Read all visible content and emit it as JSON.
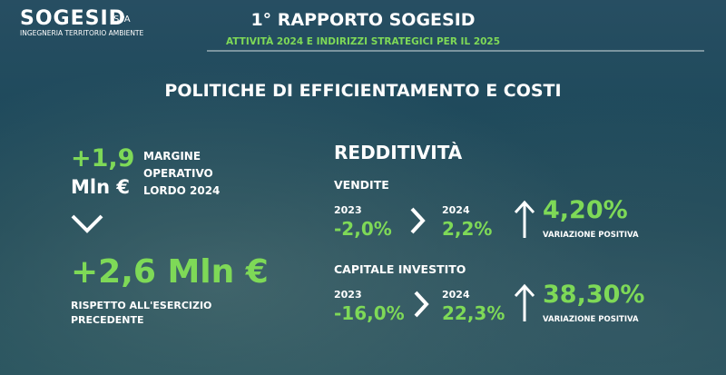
{
  "header": {
    "logo": "SOGESID",
    "logo_suffix": "SPA",
    "tagline": "INGEGNERIA TERRITORIO AMBIENTE",
    "title": "1° RAPPORTO SOGESID",
    "subtitle": "ATTIVITÀ 2024 E INDIRIZZI STRATEGICI PER IL 2025"
  },
  "section_title": "POLITICHE DI EFFICIENTAMENTO E COSTI",
  "left": {
    "value1": "+1,9",
    "unit1": "Mln €",
    "label1": "MARGINE OPERATIVO LORDO 2024",
    "value2": "+2,6 Mln €",
    "label2": "RISPETTO ALL'ESERCIZIO PRECEDENTE"
  },
  "right": {
    "heading": "REDDITIVITÀ",
    "blocks": [
      {
        "name": "VENDITE",
        "year1": "2023",
        "value1": "-2,0%",
        "year2": "2024",
        "value2": "2,2%",
        "change": "4,20%",
        "change_label": "VARIAZIONE POSITIVA"
      },
      {
        "name": "CAPITALE INVESTITO",
        "year1": "2023",
        "value1": "-16,0%",
        "year2": "2024",
        "value2": "22,3%",
        "change": "38,30%",
        "change_label": "VARIAZIONE POSITIVA"
      }
    ]
  }
}
